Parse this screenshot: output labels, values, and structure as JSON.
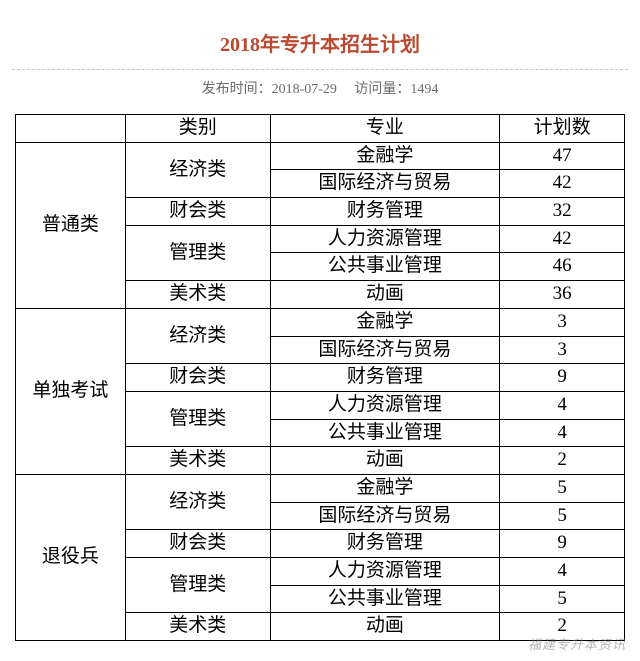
{
  "title": "2018年专升本招生计划",
  "meta": {
    "publish_label": "发布时间：",
    "publish_date": "2018-07-29",
    "visits_label": "访问量：",
    "visits": "1494"
  },
  "colors": {
    "title_color": "#b94a2f",
    "meta_color": "#6b6b6b",
    "border_color": "#000000",
    "background": "#ffffff",
    "divider": "#c8c4b8"
  },
  "typography": {
    "title_fontsize": 20,
    "meta_fontsize": 14,
    "cell_fontsize": 19
  },
  "table": {
    "columns": [
      "",
      "类别",
      "专业",
      "计划数"
    ],
    "groups": [
      {
        "group": "普通类",
        "categories": [
          {
            "category": "经济类",
            "rows": [
              {
                "major": "金融学",
                "plan": "47"
              },
              {
                "major": "国际经济与贸易",
                "plan": "42"
              }
            ]
          },
          {
            "category": "财会类",
            "rows": [
              {
                "major": "财务管理",
                "plan": "32"
              }
            ]
          },
          {
            "category": "管理类",
            "rows": [
              {
                "major": "人力资源管理",
                "plan": "42"
              },
              {
                "major": "公共事业管理",
                "plan": "46"
              }
            ]
          },
          {
            "category": "美术类",
            "rows": [
              {
                "major": "动画",
                "plan": "36"
              }
            ]
          }
        ]
      },
      {
        "group": "单独考试",
        "categories": [
          {
            "category": "经济类",
            "rows": [
              {
                "major": "金融学",
                "plan": "3"
              },
              {
                "major": "国际经济与贸易",
                "plan": "3"
              }
            ]
          },
          {
            "category": "财会类",
            "rows": [
              {
                "major": "财务管理",
                "plan": "9"
              }
            ]
          },
          {
            "category": "管理类",
            "rows": [
              {
                "major": "人力资源管理",
                "plan": "4"
              },
              {
                "major": "公共事业管理",
                "plan": "4"
              }
            ]
          },
          {
            "category": "美术类",
            "rows": [
              {
                "major": "动画",
                "plan": "2"
              }
            ]
          }
        ]
      },
      {
        "group": "退役兵",
        "categories": [
          {
            "category": "经济类",
            "rows": [
              {
                "major": "金融学",
                "plan": "5"
              },
              {
                "major": "国际经济与贸易",
                "plan": "5"
              }
            ]
          },
          {
            "category": "财会类",
            "rows": [
              {
                "major": "财务管理",
                "plan": "9"
              }
            ]
          },
          {
            "category": "管理类",
            "rows": [
              {
                "major": "人力资源管理",
                "plan": "4"
              },
              {
                "major": "公共事业管理",
                "plan": "5"
              }
            ]
          },
          {
            "category": "美术类",
            "rows": [
              {
                "major": "动画",
                "plan": "2"
              }
            ]
          }
        ]
      }
    ]
  },
  "watermark": "福建专升本资讯"
}
